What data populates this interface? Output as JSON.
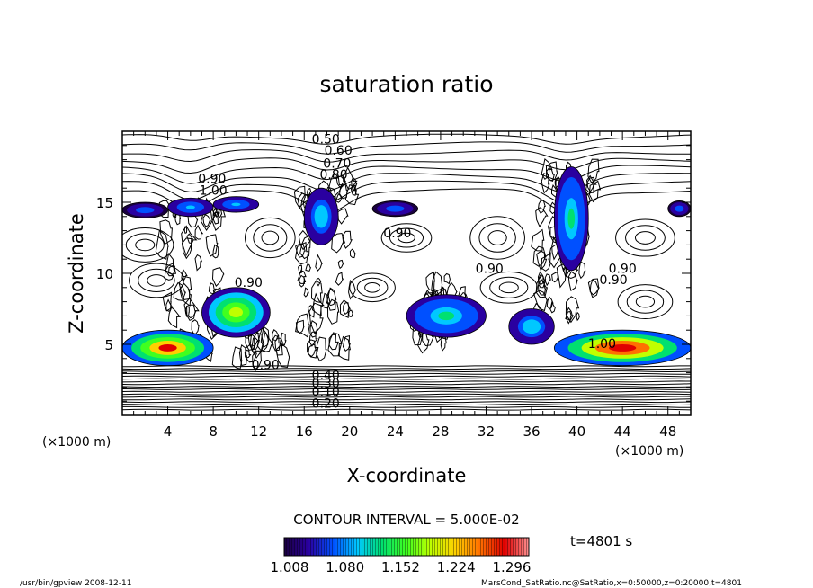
{
  "chart_data": {
    "type": "contour",
    "title": "saturation ratio",
    "xlabel": "X-coordinate",
    "ylabel": "Z-coordinate",
    "x_unit": "(×1000 m)",
    "y_unit": "(×1000 m)",
    "xlim": [
      0,
      50
    ],
    "ylim": [
      0,
      20
    ],
    "x_ticks": [
      4,
      8,
      12,
      16,
      20,
      24,
      28,
      32,
      36,
      40,
      44,
      48
    ],
    "y_ticks": [
      5,
      10,
      15
    ],
    "contour_interval_text": "CONTOUR INTERVAL = 5.000E-02",
    "time_text": "t=4801 s",
    "colorbar": {
      "tick_labels": [
        "1.008",
        "1.080",
        "1.152",
        "1.224",
        "1.296"
      ],
      "colors": [
        "#1a0040",
        "#2a00a0",
        "#0050ff",
        "#00c8ff",
        "#00e070",
        "#40ff20",
        "#c0ff00",
        "#ffd000",
        "#ff7000",
        "#e00000",
        "#ff9090"
      ]
    },
    "contour_labels": [
      {
        "text": "0.50",
        "x": 17.9,
        "z": 19.4
      },
      {
        "text": "0.60",
        "x": 19.0,
        "z": 18.6
      },
      {
        "text": "0.70",
        "x": 18.9,
        "z": 17.7
      },
      {
        "text": "0.80",
        "x": 18.6,
        "z": 16.9
      },
      {
        "text": "0.90",
        "x": 7.9,
        "z": 16.6
      },
      {
        "text": "1.00",
        "x": 8.0,
        "z": 15.8
      },
      {
        "text": "0.90",
        "x": 24.2,
        "z": 12.8
      },
      {
        "text": "0.90",
        "x": 32.3,
        "z": 10.3
      },
      {
        "text": "0.90",
        "x": 44.0,
        "z": 10.3
      },
      {
        "text": "0.90",
        "x": 11.1,
        "z": 9.3
      },
      {
        "text": "0.90",
        "x": 43.2,
        "z": 9.5
      },
      {
        "text": "1.00",
        "x": 42.2,
        "z": 5.0
      },
      {
        "text": "0.90",
        "x": 12.6,
        "z": 3.5
      },
      {
        "text": "0.40",
        "x": 17.9,
        "z": 2.8
      },
      {
        "text": "0.30",
        "x": 17.9,
        "z": 2.2
      },
      {
        "text": "0.10",
        "x": 17.9,
        "z": 1.6
      },
      {
        "text": "0.20",
        "x": 17.9,
        "z": 0.8
      }
    ],
    "supersaturated_regions": [
      {
        "x": [
          0,
          4
        ],
        "z": [
          13.9,
          15.0
        ],
        "peak": 1.06
      },
      {
        "x": [
          4,
          8
        ],
        "z": [
          14.0,
          15.3
        ],
        "peak": 1.08
      },
      {
        "x": [
          8,
          12
        ],
        "z": [
          14.3,
          15.4
        ],
        "peak": 1.08
      },
      {
        "x": [
          16,
          19
        ],
        "z": [
          12.0,
          16.0
        ],
        "peak": 1.1
      },
      {
        "x": [
          22,
          26
        ],
        "z": [
          14.0,
          15.1
        ],
        "peak": 1.06
      },
      {
        "x": [
          38,
          41
        ],
        "z": [
          10.2,
          17.5
        ],
        "peak": 1.12
      },
      {
        "x": [
          48,
          50
        ],
        "z": [
          14.0,
          15.1
        ],
        "peak": 1.06
      },
      {
        "x": [
          7,
          13
        ],
        "z": [
          5.5,
          9.0
        ],
        "peak": 1.2
      },
      {
        "x": [
          25,
          32
        ],
        "z": [
          5.5,
          8.5
        ],
        "peak": 1.12
      },
      {
        "x": [
          34,
          38
        ],
        "z": [
          5.0,
          7.5
        ],
        "peak": 1.1
      },
      {
        "x": [
          0,
          8
        ],
        "z": [
          3.5,
          6.0
        ],
        "peak": 1.28
      },
      {
        "x": [
          38,
          50
        ],
        "z": [
          3.5,
          6.0
        ],
        "peak": 1.3
      }
    ]
  },
  "footer": {
    "program": "/usr/bin/gpview   2008-12-11",
    "source": "MarsCond_SatRatio.nc@SatRatio,x=0:50000,z=0:20000,t=4801"
  }
}
